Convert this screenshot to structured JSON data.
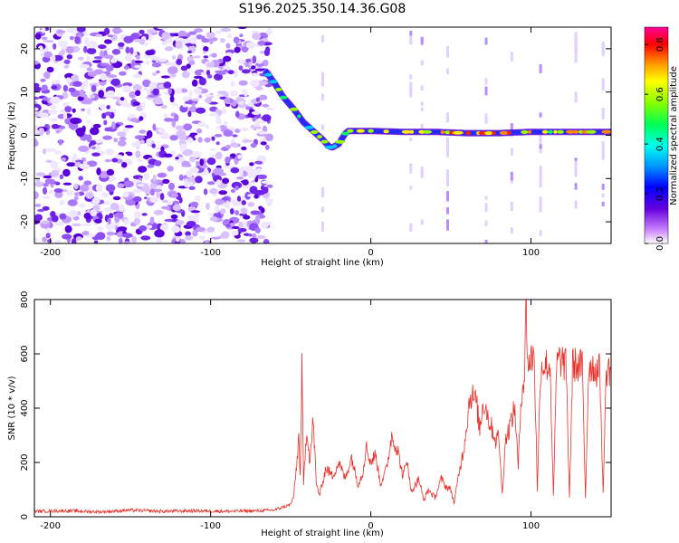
{
  "title": "S196.2025.350.14.36.G08",
  "chart_data": [
    {
      "type": "heatmap",
      "xlabel": "Height of straight line (km)",
      "ylabel": "Frequency (Hz)",
      "xlim": [
        -210,
        150
      ],
      "ylim": [
        -25,
        25
      ],
      "xticks": [
        -200,
        -100,
        0,
        100
      ],
      "yticks": [
        -20,
        -10,
        0,
        10,
        20
      ],
      "colorbar": {
        "label": "Normalized spectral amplitude",
        "range": [
          0.0,
          0.87
        ],
        "ticks": [
          0.0,
          0.2,
          0.4,
          0.6,
          0.8
        ]
      },
      "signal_track": [
        {
          "x": -66,
          "y": 15
        },
        {
          "x": -60,
          "y": 12
        },
        {
          "x": -55,
          "y": 9
        },
        {
          "x": -48,
          "y": 6
        },
        {
          "x": -42,
          "y": 3
        },
        {
          "x": -36,
          "y": 1
        },
        {
          "x": -30,
          "y": -1
        },
        {
          "x": -25,
          "y": -3
        },
        {
          "x": -20,
          "y": -2
        },
        {
          "x": -15,
          "y": 1
        },
        {
          "x": -10,
          "y": 1
        },
        {
          "x": 0,
          "y": 1
        },
        {
          "x": 20,
          "y": 0.8
        },
        {
          "x": 40,
          "y": 0.8
        },
        {
          "x": 60,
          "y": 0.5
        },
        {
          "x": 80,
          "y": 0.5
        },
        {
          "x": 100,
          "y": 0.8
        },
        {
          "x": 120,
          "y": 0.8
        },
        {
          "x": 150,
          "y": 0.8
        }
      ],
      "grid": false
    },
    {
      "type": "line",
      "xlabel": "Height of straight line (km)",
      "ylabel": "SNR (10 * v/v)",
      "xlim": [
        -210,
        150
      ],
      "ylim": [
        0,
        800
      ],
      "xticks": [
        -200,
        -100,
        0,
        100
      ],
      "yticks": [
        0,
        200,
        400,
        600,
        800
      ],
      "series": [
        {
          "color": "#e8312a",
          "points": [
            [
              -210,
              20
            ],
            [
              -190,
              22
            ],
            [
              -170,
              18
            ],
            [
              -150,
              24
            ],
            [
              -130,
              20
            ],
            [
              -110,
              22
            ],
            [
              -90,
              20
            ],
            [
              -70,
              22
            ],
            [
              -60,
              25
            ],
            [
              -50,
              45
            ],
            [
              -48,
              80
            ],
            [
              -46,
              210
            ],
            [
              -45,
              300
            ],
            [
              -44,
              150
            ],
            [
              -43,
              540
            ],
            [
              -42,
              120
            ],
            [
              -40,
              330
            ],
            [
              -38,
              200
            ],
            [
              -36,
              360
            ],
            [
              -34,
              120
            ],
            [
              -32,
              80
            ],
            [
              -28,
              180
            ],
            [
              -24,
              150
            ],
            [
              -20,
              200
            ],
            [
              -16,
              140
            ],
            [
              -12,
              220
            ],
            [
              -8,
              120
            ],
            [
              -5,
              160
            ],
            [
              -3,
              260
            ],
            [
              0,
              200
            ],
            [
              3,
              230
            ],
            [
              6,
              120
            ],
            [
              10,
              180
            ],
            [
              13,
              300
            ],
            [
              15,
              270
            ],
            [
              17,
              240
            ],
            [
              20,
              150
            ],
            [
              23,
              210
            ],
            [
              25,
              90
            ],
            [
              30,
              140
            ],
            [
              33,
              60
            ],
            [
              36,
              100
            ],
            [
              40,
              70
            ],
            [
              44,
              140
            ],
            [
              47,
              110
            ],
            [
              50,
              100
            ],
            [
              52,
              50
            ],
            [
              55,
              160
            ],
            [
              58,
              250
            ],
            [
              60,
              350
            ],
            [
              62,
              450
            ],
            [
              64,
              440
            ],
            [
              66,
              420
            ],
            [
              68,
              320
            ],
            [
              70,
              420
            ],
            [
              72,
              400
            ],
            [
              74,
              350
            ],
            [
              76,
              320
            ],
            [
              78,
              280
            ],
            [
              80,
              300
            ],
            [
              82,
              80
            ],
            [
              84,
              280
            ],
            [
              86,
              320
            ],
            [
              88,
              360
            ],
            [
              90,
              400
            ],
            [
              92,
              180
            ],
            [
              94,
              460
            ],
            [
              96,
              520
            ],
            [
              97,
              800
            ],
            [
              98,
              560
            ],
            [
              100,
              580
            ],
            [
              102,
              600
            ],
            [
              104,
              100
            ],
            [
              106,
              550
            ],
            [
              108,
              560
            ],
            [
              110,
              560
            ],
            [
              112,
              550
            ],
            [
              114,
              70
            ],
            [
              116,
              560
            ],
            [
              118,
              580
            ],
            [
              120,
              570
            ],
            [
              122,
              550
            ],
            [
              124,
              70
            ],
            [
              126,
              560
            ],
            [
              128,
              560
            ],
            [
              130,
              550
            ],
            [
              132,
              560
            ],
            [
              134,
              70
            ],
            [
              136,
              550
            ],
            [
              138,
              560
            ],
            [
              140,
              540
            ],
            [
              143,
              540
            ],
            [
              145,
              80
            ],
            [
              147,
              540
            ],
            [
              150,
              545
            ]
          ]
        }
      ],
      "grid": false
    }
  ]
}
